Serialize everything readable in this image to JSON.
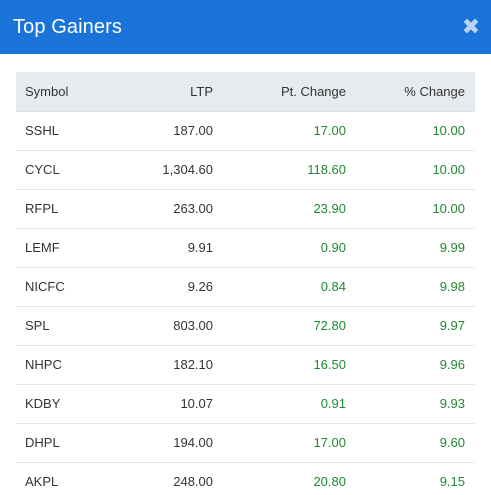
{
  "header": {
    "title": "Top Gainers",
    "close_icon": "close-icon"
  },
  "table": {
    "columns": [
      "Symbol",
      "LTP",
      "Pt. Change",
      "% Change"
    ],
    "rows": [
      [
        "SSHL",
        "187.00",
        "17.00",
        "10.00"
      ],
      [
        "CYCL",
        "1,304.60",
        "118.60",
        "10.00"
      ],
      [
        "RFPL",
        "263.00",
        "23.90",
        "10.00"
      ],
      [
        "LEMF",
        "9.91",
        "0.90",
        "9.99"
      ],
      [
        "NICFC",
        "9.26",
        "0.84",
        "9.98"
      ],
      [
        "SPL",
        "803.00",
        "72.80",
        "9.97"
      ],
      [
        "NHPC",
        "182.10",
        "16.50",
        "9.96"
      ],
      [
        "KDBY",
        "10.07",
        "0.91",
        "9.93"
      ],
      [
        "DHPL",
        "194.00",
        "17.00",
        "9.60"
      ],
      [
        "AKPL",
        "248.00",
        "20.80",
        "9.15"
      ]
    ]
  },
  "colors": {
    "header_bg": "#1a73d9",
    "positive": "#1f8a2f",
    "table_header_bg": "#e8ebee"
  }
}
